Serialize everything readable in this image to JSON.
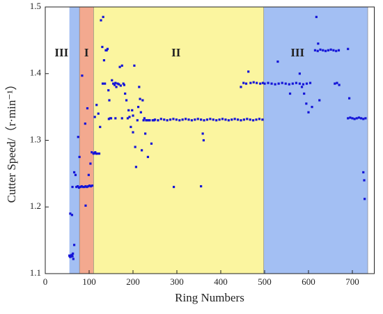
{
  "chart_data": {
    "type": "scatter",
    "xlabel": "Ring Numbers",
    "ylabel": "Cutter Speed/（r·min⁻¹）",
    "xlim": [
      0,
      750
    ],
    "ylim": [
      1.1,
      1.5
    ],
    "xticks": [
      0,
      100,
      200,
      300,
      400,
      500,
      600,
      700
    ],
    "yticks": [
      1.1,
      1.2,
      1.3,
      1.4,
      1.5
    ],
    "color": "#1414d8",
    "regions": [
      {
        "start": 55,
        "end": 78,
        "color": "#a3bff3"
      },
      {
        "start": 78,
        "end": 110,
        "color": "#f3a98f"
      },
      {
        "start": 110,
        "end": 498,
        "color": "#fbf59f"
      },
      {
        "start": 498,
        "end": 735,
        "color": "#a3bff3"
      }
    ],
    "annotations": [
      {
        "text": "III",
        "x": 37,
        "y": 1.43
      },
      {
        "text": "I",
        "x": 94,
        "y": 1.43
      },
      {
        "text": "II",
        "x": 298,
        "y": 1.43
      },
      {
        "text": "III",
        "x": 575,
        "y": 1.43
      }
    ],
    "x": [
      55,
      56,
      57,
      58,
      59,
      60,
      61,
      62,
      63,
      64,
      66,
      57,
      61,
      62,
      66,
      69,
      71,
      74,
      77,
      80,
      83,
      86,
      89,
      92,
      95,
      98,
      101,
      104,
      107,
      75,
      78,
      84,
      91,
      92,
      96,
      99,
      103,
      106,
      110,
      112,
      114,
      116,
      118,
      113,
      117,
      121,
      123,
      125,
      127,
      130,
      131,
      132,
      134,
      136,
      138,
      140,
      142,
      144,
      146,
      148,
      150,
      152,
      155,
      158,
      160,
      162,
      165,
      168,
      170,
      172,
      175,
      178,
      180,
      182,
      185,
      188,
      190,
      192,
      195,
      198,
      200,
      203,
      205,
      207,
      210,
      212,
      214,
      216,
      218,
      220,
      222,
      224,
      226,
      228,
      230,
      232,
      234,
      236,
      238,
      242,
      245,
      248,
      160,
      175,
      200,
      145,
      250,
      257,
      264,
      271,
      278,
      285,
      292,
      299,
      306,
      313,
      320,
      327,
      334,
      341,
      348,
      355,
      362,
      369,
      376,
      383,
      390,
      397,
      404,
      411,
      418,
      425,
      432,
      439,
      446,
      453,
      460,
      467,
      474,
      481,
      488,
      495,
      293,
      355,
      359,
      361,
      446,
      452,
      458,
      463,
      468,
      475,
      482,
      490,
      496,
      500,
      508,
      516,
      524,
      532,
      540,
      548,
      556,
      564,
      572,
      580,
      588,
      596,
      604,
      530,
      580,
      585,
      590,
      595,
      600,
      608,
      558,
      615,
      621,
      627,
      633,
      639,
      645,
      651,
      657,
      663,
      669,
      618,
      622,
      625,
      660,
      665,
      670,
      690,
      693,
      690,
      695,
      700,
      705,
      710,
      715,
      720,
      725,
      730,
      725,
      727,
      728
    ],
    "values": [
      1.127,
      1.126,
      1.125,
      1.127,
      1.126,
      1.128,
      1.127,
      1.126,
      1.13,
      1.122,
      1.143,
      1.19,
      1.188,
      1.23,
      1.252,
      1.248,
      1.23,
      1.231,
      1.229,
      1.23,
      1.231,
      1.23,
      1.23,
      1.231,
      1.23,
      1.231,
      1.232,
      1.231,
      1.232,
      1.305,
      1.275,
      1.397,
      1.325,
      1.202,
      1.348,
      1.248,
      1.265,
      1.282,
      1.28,
      1.281,
      1.282,
      1.28,
      1.28,
      1.335,
      1.353,
      1.34,
      1.28,
      1.32,
      1.48,
      1.44,
      1.385,
      1.485,
      1.42,
      1.385,
      1.435,
      1.435,
      1.437,
      1.375,
      1.36,
      1.333,
      1.333,
      1.39,
      1.385,
      1.383,
      1.386,
      1.38,
      1.385,
      1.384,
      1.41,
      1.382,
      1.412,
      1.385,
      1.383,
      1.37,
      1.36,
      1.333,
      1.345,
      1.335,
      1.32,
      1.345,
      1.312,
      1.412,
      1.29,
      1.26,
      1.33,
      1.35,
      1.38,
      1.362,
      1.342,
      1.285,
      1.36,
      1.33,
      1.333,
      1.31,
      1.33,
      1.33,
      1.275,
      1.33,
      1.33,
      1.295,
      1.33,
      1.33,
      1.333,
      1.333,
      1.337,
      1.332,
      1.331,
      1.33,
      1.332,
      1.331,
      1.33,
      1.331,
      1.332,
      1.331,
      1.33,
      1.331,
      1.332,
      1.331,
      1.33,
      1.331,
      1.332,
      1.331,
      1.33,
      1.331,
      1.332,
      1.331,
      1.33,
      1.331,
      1.332,
      1.331,
      1.33,
      1.331,
      1.332,
      1.331,
      1.33,
      1.331,
      1.332,
      1.331,
      1.33,
      1.331,
      1.332,
      1.331,
      1.23,
      1.231,
      1.31,
      1.3,
      1.38,
      1.386,
      1.385,
      1.403,
      1.386,
      1.387,
      1.386,
      1.385,
      1.386,
      1.385,
      1.386,
      1.385,
      1.384,
      1.385,
      1.386,
      1.385,
      1.384,
      1.385,
      1.386,
      1.385,
      1.384,
      1.385,
      1.386,
      1.418,
      1.4,
      1.38,
      1.37,
      1.355,
      1.342,
      1.35,
      1.37,
      1.435,
      1.434,
      1.436,
      1.435,
      1.434,
      1.435,
      1.436,
      1.435,
      1.434,
      1.435,
      1.485,
      1.445,
      1.36,
      1.385,
      1.386,
      1.383,
      1.437,
      1.363,
      1.333,
      1.334,
      1.333,
      1.332,
      1.333,
      1.334,
      1.333,
      1.332,
      1.333,
      1.252,
      1.24,
      1.212
    ]
  }
}
